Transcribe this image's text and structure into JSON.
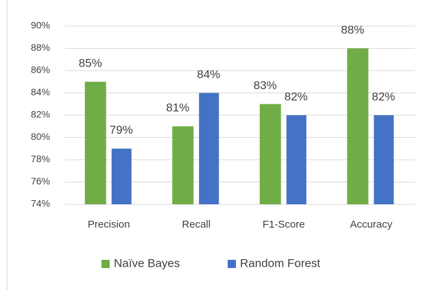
{
  "chart_data": {
    "type": "bar",
    "categories": [
      "Precision",
      "Recall",
      "F1-Score",
      "Accuracy"
    ],
    "series": [
      {
        "name": "Naïve Bayes",
        "color": "#70ad47",
        "values": [
          85,
          81,
          83,
          88
        ],
        "value_labels": [
          "85%",
          "81%",
          "83%",
          "88%"
        ]
      },
      {
        "name": "Random Forest",
        "color": "#4472c4",
        "values": [
          79,
          84,
          82,
          82
        ],
        "value_labels": [
          "79%",
          "84%",
          "82%",
          "82%"
        ]
      }
    ],
    "ylim": [
      74,
      90
    ],
    "yticks": [
      {
        "value": 74,
        "label": "74%"
      },
      {
        "value": 76,
        "label": "76%"
      },
      {
        "value": 78,
        "label": "78%"
      },
      {
        "value": 80,
        "label": "80%"
      },
      {
        "value": 82,
        "label": "82%"
      },
      {
        "value": 84,
        "label": "84%"
      },
      {
        "value": 86,
        "label": "86%"
      },
      {
        "value": 88,
        "label": "88%"
      },
      {
        "value": 90,
        "label": "90%"
      }
    ],
    "grid": true,
    "legend": "bottom"
  }
}
